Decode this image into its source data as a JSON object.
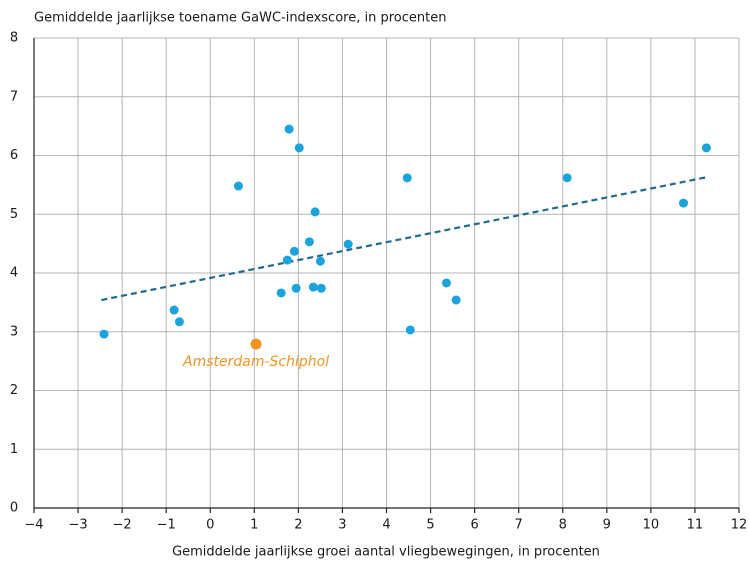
{
  "chart_data": {
    "type": "scatter",
    "title": "Gemiddelde jaarlijkse toename GaWC-indexscore, in procenten",
    "x_label": "Gemiddelde jaarlijkse groei aantal vliegbewegingen, in procenten",
    "xlim": [
      -4,
      12
    ],
    "ylim": [
      0,
      8
    ],
    "xticks": [
      {
        "value": -4,
        "label": "−4"
      },
      {
        "value": -3,
        "label": "−3"
      },
      {
        "value": -2,
        "label": "−2"
      },
      {
        "value": -1,
        "label": "−1"
      },
      0,
      1,
      2,
      3,
      4,
      5,
      6,
      7,
      8,
      9,
      10,
      11,
      12
    ],
    "yticks": [
      0,
      1,
      2,
      3,
      4,
      5,
      6,
      7,
      8
    ],
    "grid": true,
    "series": [
      {
        "color": "#1aa3dc",
        "x": [
          -2.41,
          -0.82,
          -0.7,
          0.64,
          1.79,
          2.02,
          1.75,
          1.91,
          1.61,
          1.95,
          2.25,
          2.38,
          2.5,
          2.34,
          2.52,
          3.13,
          4.47,
          4.54,
          5.36,
          5.58,
          8.1,
          10.74,
          11.26
        ],
        "y": [
          2.96,
          3.37,
          3.17,
          5.48,
          6.45,
          6.13,
          4.22,
          4.37,
          3.66,
          3.74,
          4.53,
          5.04,
          4.2,
          3.76,
          3.74,
          4.49,
          5.62,
          3.03,
          3.83,
          3.54,
          5.62,
          5.19,
          6.13
        ]
      },
      {
        "name": "Amsterdam-Schiphol",
        "color": "#f39323",
        "x": [
          1.04
        ],
        "y": [
          2.79
        ]
      }
    ],
    "trendline": {
      "color": "#1f6b8e",
      "dashed": true,
      "x": [
        -2.47,
        11.26
      ],
      "y": [
        3.54,
        5.63
      ]
    }
  }
}
